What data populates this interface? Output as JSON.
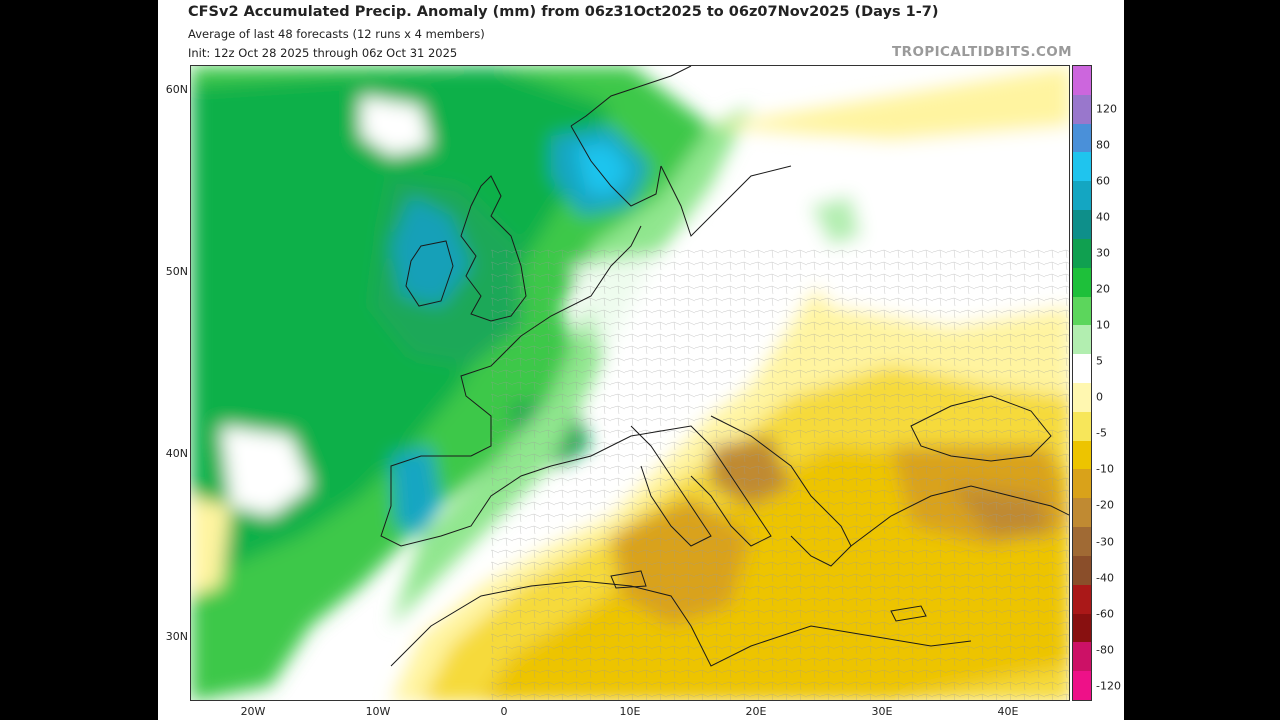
{
  "header": {
    "title": "CFSv2 Accumulated Precip. Anomaly (mm) from 06z31Oct2025 to 06z07Nov2025 (Days 1-7)",
    "subtitle1": "Average of last 48 forecasts (12 runs x 4 members)",
    "subtitle2": "Init: 12z Oct 28 2025 through 06z Oct 31 2025",
    "brand": "TROPICALTIDBITS.COM"
  },
  "axes": {
    "lat_labels": [
      "60N",
      "50N",
      "40N",
      "30N"
    ],
    "lon_labels": [
      "20W",
      "10W",
      "0",
      "10E",
      "20E",
      "30E",
      "40E"
    ]
  },
  "colorbar": {
    "labels": [
      "120",
      "80",
      "60",
      "40",
      "30",
      "20",
      "10",
      "5",
      "0",
      "-5",
      "-10",
      "-20",
      "-30",
      "-40",
      "-60",
      "-80",
      "-120"
    ],
    "colors": [
      "#cc66dd",
      "#9977cc",
      "#4a90d9",
      "#1fc4ee",
      "#14a6c2",
      "#0e8f8a",
      "#10a050",
      "#1ec03a",
      "#5cd65c",
      "#b2eeb0",
      "#ffffff",
      "#fff7b0",
      "#f7e65a",
      "#edc400",
      "#d9a21a",
      "#c08a32",
      "#a06a34",
      "#8a4e2a",
      "#aa1818",
      "#881010",
      "#cc1166",
      "#ee1188"
    ]
  }
}
